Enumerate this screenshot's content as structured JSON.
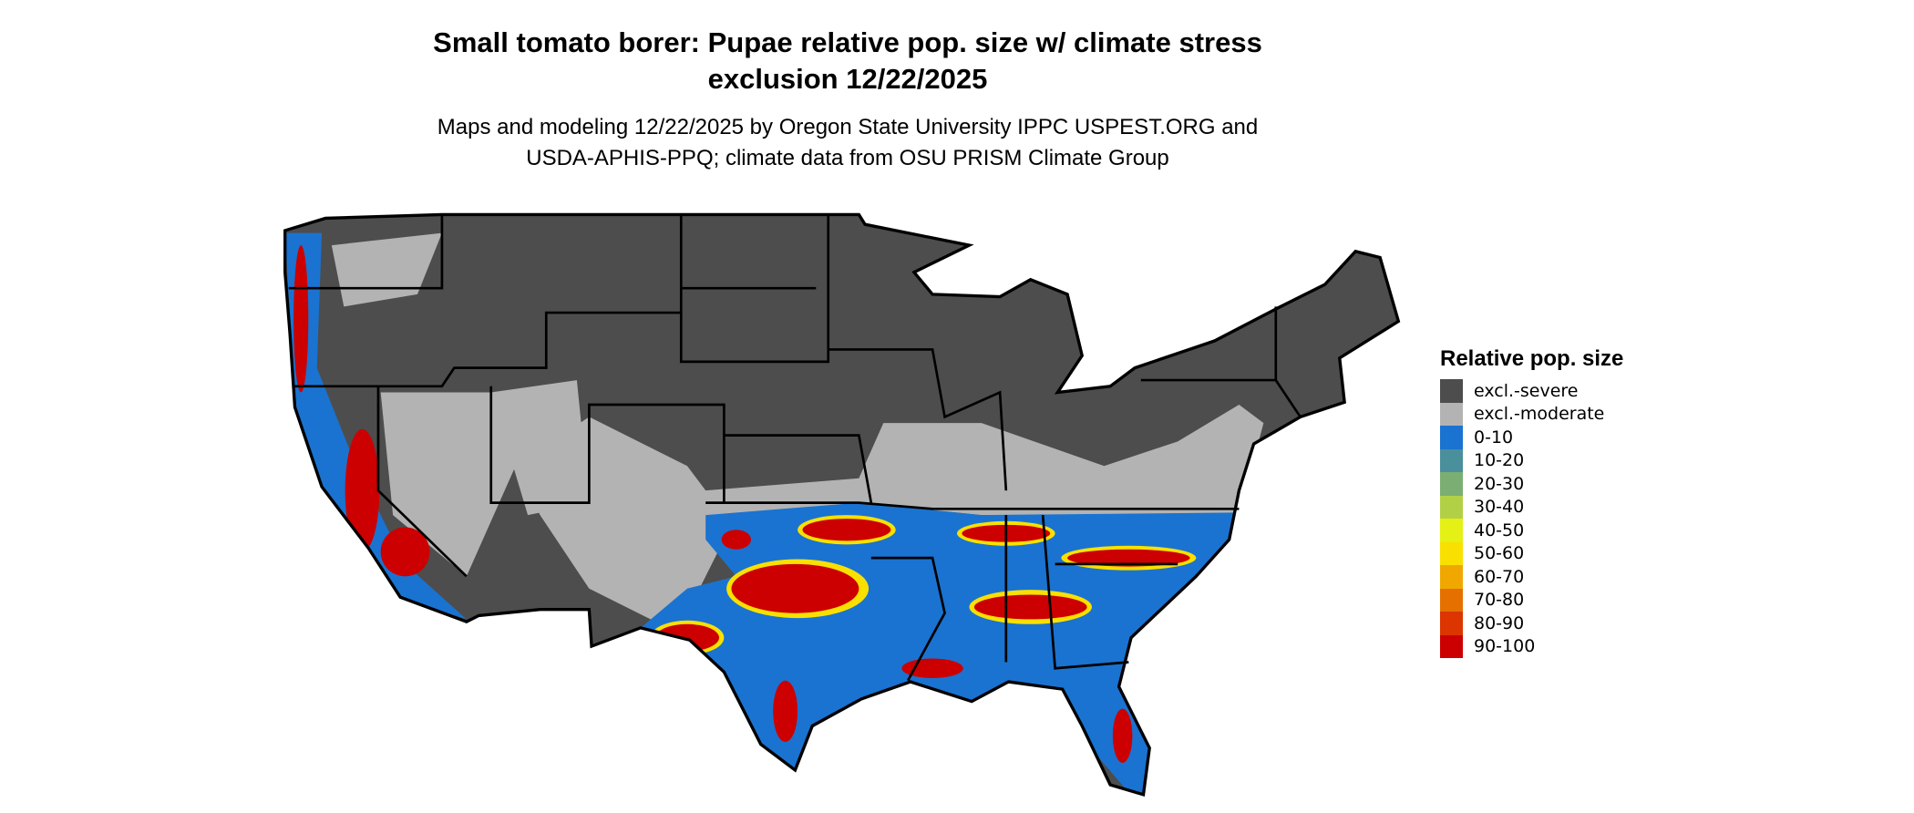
{
  "title": {
    "line1": "Small tomato borer: Pupae relative pop. size w/ climate stress",
    "line2": "exclusion 12/22/2025"
  },
  "subtitle": {
    "line1": "Maps and modeling 12/22/2025 by Oregon State University IPPC USPEST.ORG and",
    "line2": "USDA-APHIS-PPQ; climate data from OSU PRISM Climate Group"
  },
  "legend": {
    "title": "Relative pop. size",
    "items": [
      {
        "label": "excl.-severe",
        "color": "#4d4d4d"
      },
      {
        "label": "excl.-moderate",
        "color": "#b3b3b3"
      },
      {
        "label": "0-10",
        "color": "#1a73d0"
      },
      {
        "label": "10-20",
        "color": "#4a8f9c"
      },
      {
        "label": "20-30",
        "color": "#7bae72"
      },
      {
        "label": "30-40",
        "color": "#b2d046"
      },
      {
        "label": "40-50",
        "color": "#e5f014"
      },
      {
        "label": "50-60",
        "color": "#f9e000"
      },
      {
        "label": "60-70",
        "color": "#f0a800"
      },
      {
        "label": "70-80",
        "color": "#e57000"
      },
      {
        "label": "80-90",
        "color": "#dc3500"
      },
      {
        "label": "90-100",
        "color": "#cc0000"
      }
    ]
  }
}
